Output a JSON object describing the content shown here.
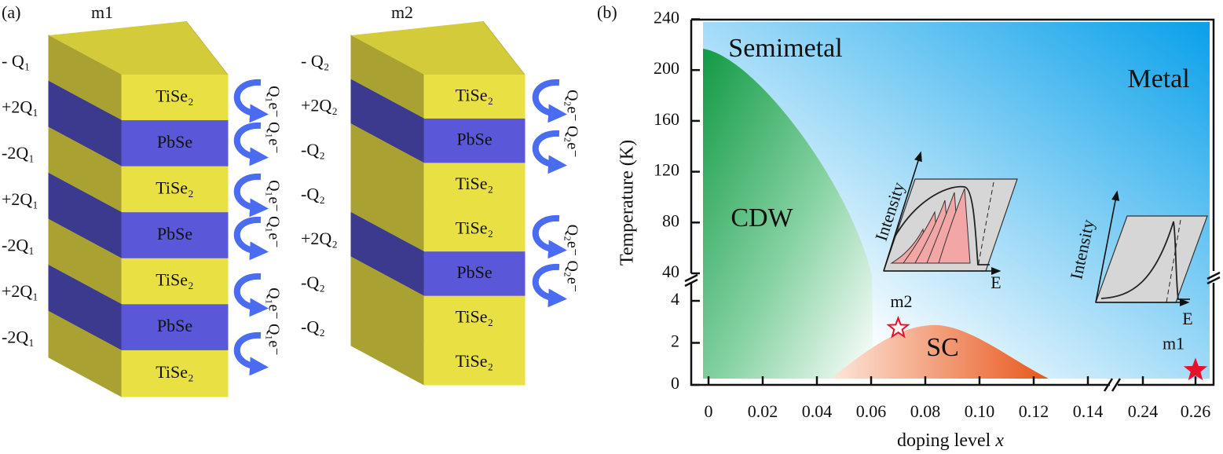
{
  "panel_a": {
    "label": "(a)",
    "stacks": [
      {
        "name": "m1",
        "layers": [
          "TiSe₂",
          "PbSe",
          "TiSe₂",
          "PbSe",
          "TiSe₂",
          "PbSe",
          "TiSe₂"
        ],
        "charges": [
          "- Q₁",
          "+2Q₁",
          "-2Q₁",
          "+2Q₁",
          "-2Q₁",
          "+2Q₁",
          "-2Q₁"
        ],
        "transfers": [
          "Q₁e⁻ Q₁e⁻",
          "Q₁e⁻ Q₁e⁻",
          "Q₁e⁻ Q₁e⁻"
        ]
      },
      {
        "name": "m2",
        "layers": [
          "TiSe₂",
          "PbSe",
          "TiSe₂",
          "TiSe₂",
          "PbSe",
          "TiSe₂",
          "TiSe₂"
        ],
        "charges": [
          "- Q₂",
          "+2Q₂",
          "-Q₂",
          "-Q₂",
          "+2Q₂",
          "-Q₂",
          "-Q₂"
        ],
        "transfers": [
          "Q₂e⁻ Q₂e⁻",
          "Q₂e⁻ Q₂e⁻"
        ]
      }
    ]
  },
  "panel_b": {
    "label": "(b)",
    "y_label": "Temperature (K)",
    "x_label": {
      "text": "doping level",
      "variable": "x"
    },
    "yticks_upper": [
      40,
      80,
      120,
      160,
      200,
      240
    ],
    "yticks_lower": [
      0,
      2,
      4
    ],
    "xticks_left": [
      0,
      0.02,
      0.04,
      0.06,
      0.08,
      {
        "value": 0.1,
        "label": "0.10"
      },
      0.12,
      0.14
    ],
    "xticks_right": [
      0.24,
      0.26
    ],
    "regions": [
      "Semimetal",
      "Metal",
      "CDW",
      "SC"
    ],
    "markers": [
      {
        "label": "m2",
        "x": 0.07,
        "T": 2.7,
        "filled": false
      },
      {
        "label": "m1",
        "x": 0.26,
        "T": 0.7,
        "filled": true
      }
    ],
    "insets": [
      {
        "y_label": "Intensity",
        "x_label": "E"
      },
      {
        "y_label": "Intensity",
        "x_label": "E"
      }
    ]
  }
}
